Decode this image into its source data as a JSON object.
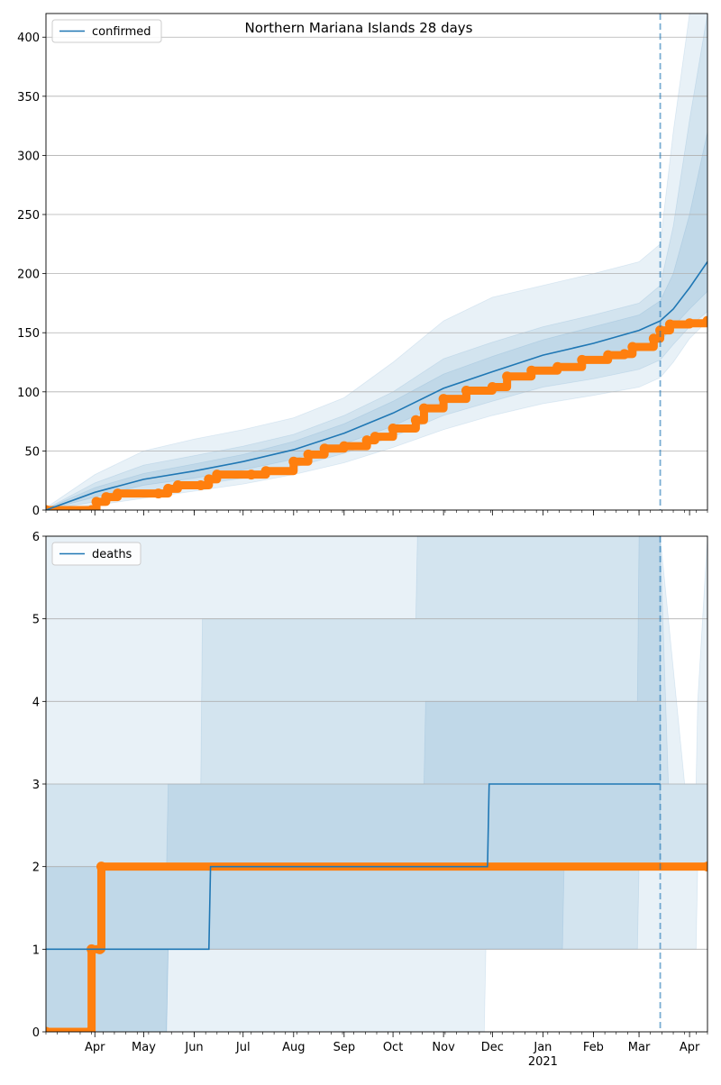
{
  "title": "Northern Mariana Islands 28 days",
  "colors": {
    "model": "#1f77b4",
    "observed": "#ff7f0e",
    "band": "#1f77b4",
    "grid": "#b0b0b0",
    "axis": "#000000"
  },
  "chart_data": [
    {
      "type": "line",
      "name": "confirmed-panel",
      "legend": "confirmed",
      "legend_position": "upper-left",
      "grid": "horizontal",
      "xlim": [
        "2020-03-02",
        "2021-04-12"
      ],
      "ylim": [
        0,
        420
      ],
      "yticks": [
        0,
        50,
        100,
        150,
        200,
        250,
        300,
        350,
        400
      ],
      "forecast_start": "2021-03-14",
      "series": [
        {
          "name": "confirmed",
          "kind": "model-median",
          "x": [
            "2020-03-02",
            "2020-04-01",
            "2020-05-01",
            "2020-06-01",
            "2020-07-01",
            "2020-08-01",
            "2020-09-01",
            "2020-10-01",
            "2020-11-01",
            "2020-12-01",
            "2021-01-01",
            "2021-02-01",
            "2021-03-01",
            "2021-03-14",
            "2021-03-22",
            "2021-04-01",
            "2021-04-12"
          ],
          "y": [
            0,
            15,
            26,
            33,
            41,
            51,
            65,
            82,
            103,
            117,
            131,
            141,
            152,
            160,
            170,
            188,
            210
          ]
        },
        {
          "name": "observed",
          "kind": "observed-markers",
          "x": [
            "2020-03-02",
            "2020-03-30",
            "2020-04-02",
            "2020-04-08",
            "2020-04-15",
            "2020-05-10",
            "2020-05-16",
            "2020-05-22",
            "2020-06-05",
            "2020-06-10",
            "2020-06-15",
            "2020-07-06",
            "2020-07-15",
            "2020-08-01",
            "2020-08-10",
            "2020-08-20",
            "2020-09-01",
            "2020-09-15",
            "2020-09-20",
            "2020-10-01",
            "2020-10-15",
            "2020-10-20",
            "2020-11-01",
            "2020-11-15",
            "2020-12-01",
            "2020-12-10",
            "2020-12-25",
            "2021-01-10",
            "2021-01-25",
            "2021-02-10",
            "2021-02-20",
            "2021-02-25",
            "2021-03-10",
            "2021-03-14",
            "2021-03-20",
            "2021-04-01",
            "2021-04-12"
          ],
          "y": [
            0,
            0,
            7,
            11,
            14,
            14,
            18,
            21,
            21,
            26,
            30,
            30,
            33,
            41,
            47,
            52,
            54,
            59,
            62,
            69,
            76,
            86,
            94,
            101,
            104,
            113,
            118,
            121,
            127,
            131,
            132,
            138,
            145,
            152,
            157,
            158,
            160
          ]
        }
      ],
      "bands": [
        {
          "level": "outer",
          "x": [
            "2020-03-02",
            "2020-04-01",
            "2020-05-01",
            "2020-06-01",
            "2020-07-01",
            "2020-08-01",
            "2020-09-01",
            "2020-10-01",
            "2020-11-01",
            "2020-12-01",
            "2021-01-01",
            "2021-02-01",
            "2021-03-01",
            "2021-03-14",
            "2021-03-22",
            "2021-04-01",
            "2021-04-12"
          ],
          "low": [
            0,
            4,
            10,
            16,
            22,
            30,
            40,
            53,
            68,
            80,
            90,
            97,
            104,
            112,
            125,
            145,
            160
          ],
          "high": [
            2,
            30,
            50,
            60,
            68,
            78,
            95,
            125,
            160,
            180,
            190,
            200,
            210,
            225,
            320,
            420,
            420
          ]
        },
        {
          "level": "middle",
          "x": [
            "2020-03-02",
            "2020-04-01",
            "2020-05-01",
            "2020-06-01",
            "2020-07-01",
            "2020-08-01",
            "2020-09-01",
            "2020-10-01",
            "2020-11-01",
            "2020-12-01",
            "2021-01-01",
            "2021-02-01",
            "2021-03-01",
            "2021-03-14",
            "2021-03-22",
            "2021-04-01",
            "2021-04-12"
          ],
          "low": [
            0,
            7,
            15,
            21,
            27,
            36,
            48,
            62,
            80,
            92,
            104,
            111,
            119,
            127,
            140,
            155,
            168
          ],
          "high": [
            1,
            23,
            38,
            46,
            54,
            64,
            80,
            100,
            128,
            142,
            155,
            165,
            175,
            190,
            240,
            330,
            420
          ]
        },
        {
          "level": "inner",
          "x": [
            "2020-03-02",
            "2020-04-01",
            "2020-05-01",
            "2020-06-01",
            "2020-07-01",
            "2020-08-01",
            "2020-09-01",
            "2020-10-01",
            "2020-11-01",
            "2020-12-01",
            "2021-01-01",
            "2021-02-01",
            "2021-03-01",
            "2021-03-14",
            "2021-03-22",
            "2021-04-01",
            "2021-04-12"
          ],
          "low": [
            0,
            11,
            21,
            27,
            34,
            43,
            56,
            71,
            91,
            104,
            118,
            126,
            135,
            143,
            155,
            170,
            185
          ],
          "high": [
            1,
            19,
            31,
            39,
            47,
            58,
            73,
            92,
            115,
            130,
            144,
            155,
            165,
            177,
            200,
            250,
            320
          ]
        }
      ]
    },
    {
      "type": "line",
      "name": "deaths-panel",
      "legend": "deaths",
      "legend_position": "upper-left",
      "grid": "horizontal",
      "xlim": [
        "2020-03-02",
        "2021-04-12"
      ],
      "ylim": [
        0,
        6
      ],
      "yticks": [
        0,
        1,
        2,
        3,
        4,
        5,
        6
      ],
      "forecast_start": "2021-03-14",
      "series": [
        {
          "name": "deaths",
          "kind": "model-median",
          "x": [
            "2020-03-02",
            "2020-06-10",
            "2020-06-11",
            "2020-11-28",
            "2020-11-29",
            "2021-03-14"
          ],
          "y": [
            1,
            1,
            2,
            2,
            3,
            3
          ]
        },
        {
          "name": "observed",
          "kind": "observed-markers",
          "x": [
            "2020-03-02",
            "2020-03-29",
            "2020-03-30",
            "2020-04-04",
            "2020-04-05",
            "2021-04-12"
          ],
          "y": [
            0,
            0,
            1,
            1,
            2,
            2
          ]
        }
      ],
      "bands": [
        {
          "level": "outer",
          "x": [
            "2020-03-02",
            "2020-11-26",
            "2020-11-27",
            "2021-03-14",
            "2021-03-19",
            "2021-04-05",
            "2021-04-06",
            "2021-04-12"
          ],
          "low": [
            0,
            0,
            1,
            1,
            1,
            1,
            2,
            2
          ],
          "high": [
            6,
            6,
            6,
            6,
            3,
            3,
            4,
            6
          ]
        },
        {
          "level": "middle",
          "x": [
            "2020-03-02",
            "2020-05-15",
            "2020-05-16",
            "2020-06-05",
            "2020-06-06",
            "2020-10-15",
            "2020-10-16",
            "2021-01-13",
            "2021-01-14",
            "2021-03-14",
            "2021-03-29",
            "2021-04-12"
          ],
          "low": [
            0,
            0,
            1,
            1,
            1,
            1,
            1,
            1,
            2,
            2,
            2,
            2
          ],
          "high": [
            3,
            3,
            3,
            3,
            5,
            5,
            6,
            6,
            6,
            6,
            3,
            3
          ]
        },
        {
          "level": "inner",
          "x": [
            "2020-03-02",
            "2020-05-15",
            "2020-05-16",
            "2020-06-10",
            "2020-06-11",
            "2020-10-20",
            "2020-10-21",
            "2021-02-28",
            "2021-03-01",
            "2021-03-14"
          ],
          "low": [
            0,
            0,
            1,
            1,
            1,
            1,
            1,
            1,
            2,
            2
          ],
          "high": [
            2,
            2,
            3,
            3,
            3,
            3,
            4,
            4,
            6,
            6
          ]
        }
      ]
    }
  ],
  "x_axis": {
    "month_ticks": [
      {
        "date": "2020-04-01",
        "label": "Apr"
      },
      {
        "date": "2020-05-01",
        "label": "May"
      },
      {
        "date": "2020-06-01",
        "label": "Jun"
      },
      {
        "date": "2020-07-01",
        "label": "Jul"
      },
      {
        "date": "2020-08-01",
        "label": "Aug"
      },
      {
        "date": "2020-09-01",
        "label": "Sep"
      },
      {
        "date": "2020-10-01",
        "label": "Oct"
      },
      {
        "date": "2020-11-01",
        "label": "Nov"
      },
      {
        "date": "2020-12-01",
        "label": "Dec"
      },
      {
        "date": "2021-01-01",
        "label": "Jan"
      },
      {
        "date": "2021-02-01",
        "label": "Feb"
      },
      {
        "date": "2021-03-01",
        "label": "Mar"
      },
      {
        "date": "2021-04-01",
        "label": "Apr"
      }
    ],
    "year_label": {
      "date": "2021-01-01",
      "label": "2021"
    }
  }
}
